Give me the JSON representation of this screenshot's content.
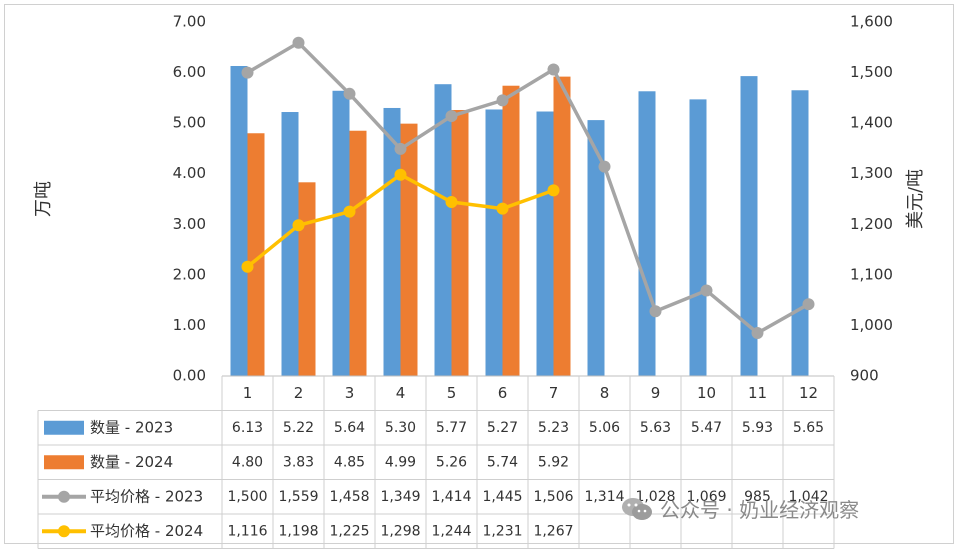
{
  "chart_data": {
    "type": "bar",
    "categories": [
      "1",
      "2",
      "3",
      "4",
      "5",
      "6",
      "7",
      "8",
      "9",
      "10",
      "11",
      "12"
    ],
    "left_axis": {
      "label": "万吨",
      "ylim": [
        0,
        7
      ],
      "ticks": [
        "0.00",
        "1.00",
        "2.00",
        "3.00",
        "4.00",
        "5.00",
        "6.00",
        "7.00"
      ]
    },
    "right_axis": {
      "label": "美元/吨",
      "ylim": [
        900,
        1600
      ],
      "ticks": [
        "900",
        "1,000",
        "1,100",
        "1,200",
        "1,300",
        "1,400",
        "1,500",
        "1,600"
      ]
    },
    "series": [
      {
        "name": "数量 - 2023",
        "kind": "bar",
        "axis": "left",
        "color": "#5b9bd5",
        "values": [
          6.13,
          5.22,
          5.64,
          5.3,
          5.77,
          5.27,
          5.23,
          5.06,
          5.63,
          5.47,
          5.93,
          5.65
        ],
        "labels": [
          "6.13",
          "5.22",
          "5.64",
          "5.30",
          "5.77",
          "5.27",
          "5.23",
          "5.06",
          "5.63",
          "5.47",
          "5.93",
          "5.65"
        ]
      },
      {
        "name": "数量 - 2024",
        "kind": "bar",
        "axis": "left",
        "color": "#ed7d31",
        "values": [
          4.8,
          3.83,
          4.85,
          4.99,
          5.26,
          5.74,
          5.92,
          null,
          null,
          null,
          null,
          null
        ],
        "labels": [
          "4.80",
          "3.83",
          "4.85",
          "4.99",
          "5.26",
          "5.74",
          "5.92",
          "",
          "",
          "",
          "",
          ""
        ]
      },
      {
        "name": "平均价格 - 2023",
        "kind": "line",
        "axis": "right",
        "color": "#a5a5a5",
        "values": [
          1500,
          1559,
          1458,
          1349,
          1414,
          1445,
          1506,
          1314,
          1028,
          1069,
          985,
          1042
        ],
        "labels": [
          "1,500",
          "1,559",
          "1,458",
          "1,349",
          "1,414",
          "1,445",
          "1,506",
          "1,314",
          "1,028",
          "1,069",
          "985",
          "1,042"
        ]
      },
      {
        "name": "平均价格 - 2024",
        "kind": "line",
        "axis": "right",
        "color": "#ffc000",
        "values": [
          1116,
          1198,
          1225,
          1298,
          1244,
          1231,
          1267,
          null,
          null,
          null,
          null,
          null
        ],
        "labels": [
          "1,116",
          "1,198",
          "1,225",
          "1,298",
          "1,244",
          "1,231",
          "1,267",
          "",
          "",
          "",
          "",
          ""
        ]
      }
    ]
  },
  "watermark": {
    "text": "公众号 · 奶业经济观察",
    "icon": "wechat-icon"
  }
}
